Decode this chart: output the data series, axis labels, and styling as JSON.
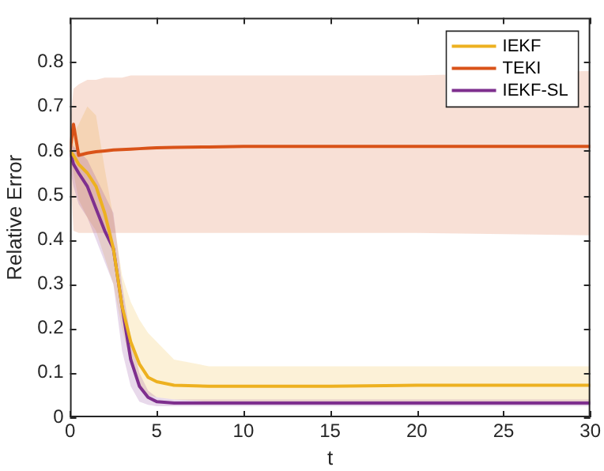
{
  "chart_data": {
    "type": "line",
    "xlabel": "t",
    "ylabel": "Relative Error",
    "xlim": [
      0,
      30
    ],
    "xticks": [
      0,
      5,
      10,
      15,
      20,
      25,
      30
    ],
    "ylim": [
      0,
      0.9
    ],
    "yticks": [
      0,
      0.1,
      0.2,
      0.3,
      0.4,
      0.5,
      0.6,
      0.7,
      0.8
    ],
    "grid": false,
    "legend": "top right",
    "marker": "none",
    "line_style": "solid",
    "x": [
      0,
      0.2,
      0.5,
      1,
      1.5,
      2,
      2.5,
      3,
      3.5,
      4,
      4.5,
      5,
      6,
      8,
      10,
      15,
      20,
      25,
      30
    ],
    "series": [
      {
        "name": "IEKF",
        "color": "#edb120",
        "values": [
          0.6,
          0.59,
          0.57,
          0.55,
          0.52,
          0.46,
          0.38,
          0.25,
          0.17,
          0.12,
          0.09,
          0.08,
          0.072,
          0.07,
          0.07,
          0.07,
          0.072,
          0.072,
          0.072
        ],
        "lower": [
          0.58,
          0.55,
          0.49,
          0.45,
          0.42,
          0.36,
          0.3,
          0.2,
          0.12,
          0.07,
          0.05,
          0.045,
          0.04,
          0.035,
          0.035,
          0.035,
          0.035,
          0.035,
          0.035
        ],
        "upper": [
          0.62,
          0.64,
          0.66,
          0.7,
          0.68,
          0.56,
          0.45,
          0.32,
          0.26,
          0.22,
          0.19,
          0.17,
          0.13,
          0.115,
          0.115,
          0.115,
          0.115,
          0.115,
          0.115
        ]
      },
      {
        "name": "TEKI",
        "color": "#d95319",
        "values": [
          0.6,
          0.66,
          0.59,
          0.595,
          0.598,
          0.6,
          0.602,
          0.603,
          0.604,
          0.605,
          0.606,
          0.607,
          0.608,
          0.609,
          0.61,
          0.61,
          0.61,
          0.61,
          0.61
        ],
        "lower": [
          0.58,
          0.42,
          0.415,
          0.415,
          0.415,
          0.415,
          0.415,
          0.415,
          0.415,
          0.415,
          0.415,
          0.415,
          0.415,
          0.415,
          0.415,
          0.415,
          0.415,
          null,
          0.41
        ],
        "upper": [
          0.65,
          0.74,
          0.75,
          0.76,
          0.76,
          0.765,
          0.765,
          0.765,
          0.77,
          0.77,
          0.77,
          0.77,
          0.77,
          0.77,
          0.77,
          0.77,
          0.77,
          null,
          0.78
        ]
      },
      {
        "name": "IEKF-SL",
        "color": "#7e2f8e",
        "values": [
          0.6,
          0.57,
          0.55,
          0.52,
          0.47,
          0.42,
          0.38,
          0.25,
          0.13,
          0.07,
          0.045,
          0.035,
          0.032,
          0.032,
          0.032,
          0.032,
          0.032,
          0.032,
          0.032
        ],
        "lower": [
          0.56,
          0.52,
          0.48,
          0.45,
          0.4,
          0.35,
          0.3,
          0.15,
          0.07,
          0.035,
          0.028,
          0.025,
          0.025,
          0.025,
          0.025,
          0.025,
          0.025,
          0.025,
          0.025
        ],
        "upper": [
          0.62,
          0.61,
          0.6,
          0.58,
          0.54,
          0.5,
          0.46,
          0.3,
          0.18,
          0.1,
          0.06,
          0.045,
          0.04,
          0.04,
          0.04,
          0.04,
          0.04,
          0.04,
          0.04
        ]
      }
    ]
  }
}
